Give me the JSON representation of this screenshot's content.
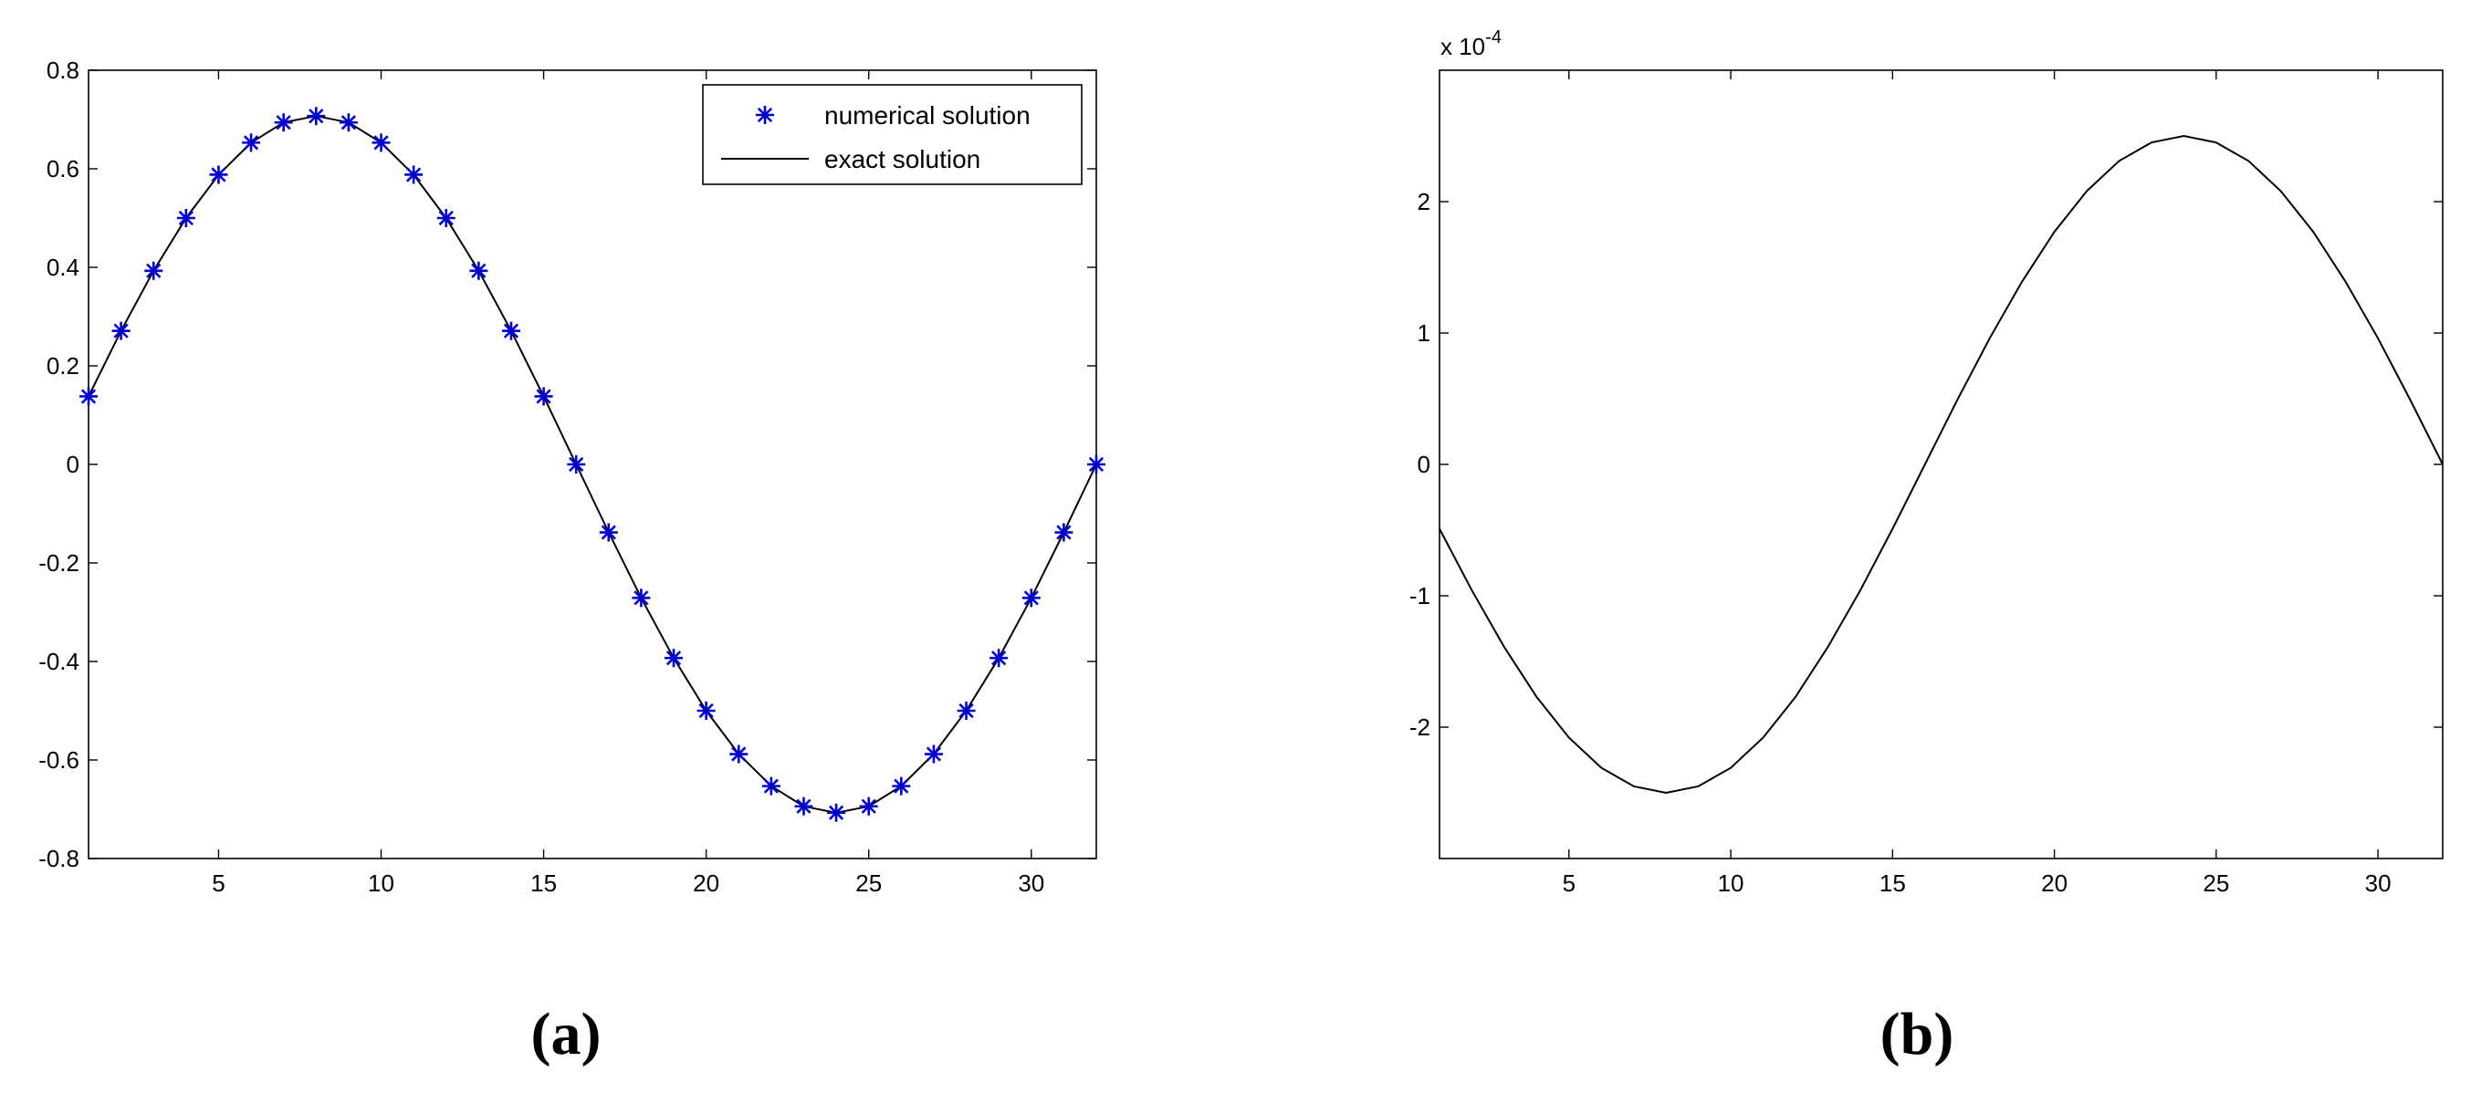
{
  "panel_labels": {
    "a": "(a)",
    "b": "(b)"
  },
  "chart_data": [
    {
      "type": "line",
      "panel": "(a)",
      "title": "",
      "xlabel": "",
      "ylabel": "",
      "xlim": [
        1,
        32
      ],
      "ylim": [
        -0.8,
        0.8
      ],
      "grid": false,
      "legend_position": "top-right",
      "xticks": [
        5,
        10,
        15,
        20,
        25,
        30
      ],
      "yticks": [
        -0.8,
        -0.6,
        -0.4,
        -0.2,
        0,
        0.2,
        0.4,
        0.6,
        0.8
      ],
      "xtick_labels": [
        "5",
        "10",
        "15",
        "20",
        "25",
        "30"
      ],
      "ytick_labels": [
        "-0.8",
        "-0.6",
        "-0.4",
        "-0.2",
        "0",
        "0.2",
        "0.4",
        "0.6",
        "0.8"
      ],
      "series": [
        {
          "name": "numerical solution",
          "style": "markers",
          "marker": "*",
          "color": "#0000cc",
          "x": [
            1,
            2,
            3,
            4,
            5,
            6,
            7,
            8,
            9,
            10,
            11,
            12,
            13,
            14,
            15,
            16,
            17,
            18,
            19,
            20,
            21,
            22,
            23,
            24,
            25,
            26,
            27,
            28,
            29,
            30,
            31,
            32
          ],
          "y": [
            0.138,
            0.271,
            0.393,
            0.5,
            0.588,
            0.653,
            0.694,
            0.707,
            0.694,
            0.653,
            0.588,
            0.5,
            0.393,
            0.271,
            0.138,
            0,
            -0.138,
            -0.271,
            -0.393,
            -0.5,
            -0.588,
            -0.653,
            -0.694,
            -0.707,
            -0.694,
            -0.653,
            -0.588,
            -0.5,
            -0.393,
            -0.271,
            -0.138,
            0
          ]
        },
        {
          "name": "exact solution",
          "style": "line",
          "color": "#000000",
          "x": [
            1,
            2,
            3,
            4,
            5,
            6,
            7,
            8,
            9,
            10,
            11,
            12,
            13,
            14,
            15,
            16,
            17,
            18,
            19,
            20,
            21,
            22,
            23,
            24,
            25,
            26,
            27,
            28,
            29,
            30,
            31,
            32
          ],
          "y": [
            0.138,
            0.271,
            0.393,
            0.5,
            0.588,
            0.653,
            0.694,
            0.707,
            0.694,
            0.653,
            0.588,
            0.5,
            0.393,
            0.271,
            0.138,
            0,
            -0.138,
            -0.271,
            -0.393,
            -0.5,
            -0.588,
            -0.653,
            -0.694,
            -0.707,
            -0.694,
            -0.653,
            -0.588,
            -0.5,
            -0.393,
            -0.271,
            -0.138,
            0
          ]
        }
      ]
    },
    {
      "type": "line",
      "panel": "(b)",
      "title": "",
      "xlabel": "",
      "ylabel": "",
      "xlim": [
        1,
        32
      ],
      "ylim": [
        -3,
        3
      ],
      "grid": false,
      "y_exponent_label": "x 10",
      "y_exponent_power": "-4",
      "xticks": [
        5,
        10,
        15,
        20,
        25,
        30
      ],
      "yticks": [
        -2,
        -1,
        0,
        1,
        2
      ],
      "xtick_labels": [
        "5",
        "10",
        "15",
        "20",
        "25",
        "30"
      ],
      "ytick_labels": [
        "-2",
        "-1",
        "0",
        "1",
        "2"
      ],
      "series": [
        {
          "style": "line",
          "color": "#000000",
          "x": [
            1,
            2,
            3,
            4,
            5,
            6,
            7,
            8,
            9,
            10,
            11,
            12,
            13,
            14,
            15,
            16,
            17,
            18,
            19,
            20,
            21,
            22,
            23,
            24,
            25,
            26,
            27,
            28,
            29,
            30,
            31,
            32
          ],
          "y": [
            -0.49,
            -0.96,
            -1.39,
            -1.77,
            -2.08,
            -2.31,
            -2.45,
            -2.5,
            -2.45,
            -2.31,
            -2.08,
            -1.77,
            -1.39,
            -0.96,
            -0.49,
            0,
            0.49,
            0.96,
            1.39,
            1.77,
            2.08,
            2.31,
            2.45,
            2.5,
            2.45,
            2.31,
            2.08,
            1.77,
            1.39,
            0.96,
            0.49,
            0
          ]
        }
      ]
    }
  ]
}
